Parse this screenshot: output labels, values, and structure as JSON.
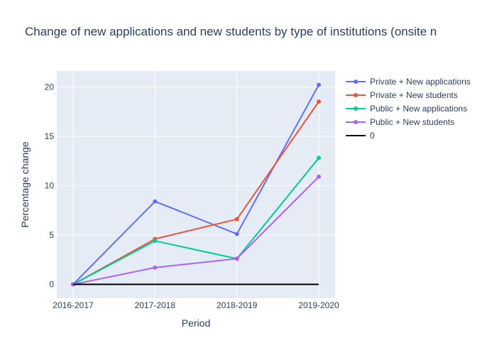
{
  "chart_data": {
    "type": "line",
    "title": "Change of new applications and new students by type of institutions (onsite n",
    "xlabel": "Period",
    "ylabel": "Percentage change",
    "categories": [
      "2016-2017",
      "2017-2018",
      "2018-2019",
      "2019-2020"
    ],
    "ylim": [
      -1.4,
      21.6
    ],
    "yticks": [
      0,
      5,
      10,
      15,
      20
    ],
    "grid": true,
    "legend_position": "right",
    "plot_background": "#e5ecf6",
    "series": [
      {
        "name": "Private + New applications",
        "color": "#636efa",
        "values": [
          0,
          8.4,
          5.1,
          20.2
        ],
        "markers": true
      },
      {
        "name": "Private + New students",
        "color": "#ef553b",
        "values": [
          0,
          4.6,
          6.6,
          18.5
        ],
        "markers": true
      },
      {
        "name": "Public + New applications",
        "color": "#00cc96",
        "values": [
          0,
          4.4,
          2.6,
          12.8
        ],
        "markers": true
      },
      {
        "name": "Public + New students",
        "color": "#ab63fa",
        "values": [
          0,
          1.7,
          2.6,
          10.9
        ],
        "markers": true
      },
      {
        "name": "0",
        "color": "#000000",
        "values": [
          0,
          0,
          0,
          0
        ],
        "markers": false
      }
    ]
  }
}
